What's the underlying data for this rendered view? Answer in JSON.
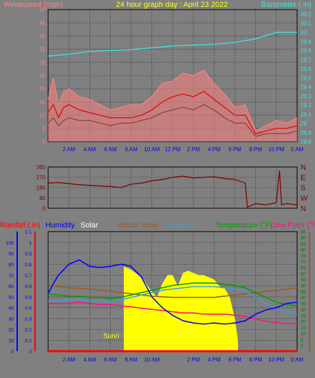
{
  "chart_data": [
    {
      "type": "line",
      "title": "24 hour graph day : April 23 2022",
      "ylabel": "Windspeed (mph)",
      "y2label": "Barometer (.in)",
      "ylim": [
        0,
        50
      ],
      "y2lim": [
        28.8,
        30.25
      ],
      "yticks": [
        "0",
        "5",
        "10",
        "15",
        "20",
        "25",
        "30",
        "35",
        "40",
        "45",
        "50"
      ],
      "y2ticks": [
        "28.8",
        "28.9",
        "29",
        "29.1",
        "29.2",
        "29.3",
        "29.4",
        "29.5",
        "29.6",
        "29.7",
        "29.8",
        "29.9",
        "30",
        "30.1",
        "30.2"
      ],
      "xticks": [
        "2 AM",
        "4 AM",
        "6 AM",
        "8 AM",
        "10 AM",
        "12 PM",
        "2 PM",
        "4 PM",
        "6 PM",
        "8 PM",
        "10 PM",
        "0 AM"
      ],
      "colors": {
        "gust": "#ff8080",
        "wind": "#e00000",
        "wind_dark": "#8b3a3a",
        "barometer": "#40e0e0"
      },
      "series": [
        {
          "key": "gust",
          "x": [
            0,
            0.5,
            1,
            1.5,
            2,
            3,
            4,
            5,
            6,
            7,
            8,
            9,
            10,
            11,
            12,
            13,
            14,
            15,
            16,
            17,
            18,
            19,
            20,
            21,
            22,
            23,
            24
          ],
          "values": [
            16,
            24,
            14,
            19,
            20,
            17,
            16,
            14,
            12,
            13,
            14,
            14,
            17,
            22,
            23,
            26,
            25,
            27,
            22,
            18,
            13,
            14,
            4,
            6,
            8,
            7,
            9
          ]
        },
        {
          "key": "wind",
          "x": [
            0,
            0.5,
            1,
            1.5,
            2,
            3,
            4,
            5,
            6,
            7,
            8,
            9,
            10,
            11,
            12,
            13,
            14,
            15,
            16,
            17,
            18,
            19,
            20,
            21,
            22,
            23,
            24
          ],
          "values": [
            11,
            14,
            9,
            13,
            14,
            12,
            11,
            10,
            9,
            9,
            9,
            10,
            12,
            15,
            17,
            18,
            17,
            19,
            16,
            13,
            10,
            10,
            3,
            4,
            5,
            5,
            6
          ]
        },
        {
          "key": "wind_dark",
          "x": [
            0,
            0.5,
            1,
            1.5,
            2,
            3,
            4,
            5,
            6,
            7,
            8,
            9,
            10,
            11,
            12,
            13,
            14,
            15,
            16,
            17,
            18,
            19,
            20,
            21,
            22,
            23,
            24
          ],
          "values": [
            7,
            9,
            6,
            8,
            9,
            8,
            8,
            7,
            6,
            7,
            7,
            8,
            9,
            11,
            12,
            13,
            12,
            14,
            12,
            9,
            7,
            7,
            2,
            3,
            3,
            3,
            4
          ]
        },
        {
          "key": "barometer",
          "x": [
            0,
            2,
            4,
            6,
            8,
            10,
            12,
            14,
            16,
            18,
            20,
            22,
            24
          ],
          "values": [
            29.74,
            29.76,
            29.79,
            29.8,
            29.81,
            29.83,
            29.85,
            29.86,
            29.87,
            29.89,
            29.93,
            30.0,
            30.0
          ]
        }
      ]
    },
    {
      "type": "line",
      "ylim": [
        0,
        360
      ],
      "yticks": [
        "0",
        "90",
        "180",
        "270",
        "360"
      ],
      "compass": [
        "N",
        "W",
        "S",
        "E",
        "N"
      ],
      "xticks": [
        "2 AM",
        "4 AM",
        "6 AM",
        "8 AM",
        "10 AM",
        "12 PM",
        "2 PM",
        "4 PM",
        "6 PM",
        "8 PM",
        "10 PM",
        "0 AM"
      ],
      "colors": {
        "direction": "#800000"
      },
      "series": [
        {
          "key": "direction",
          "x": [
            0,
            1,
            2,
            3,
            4,
            5,
            6,
            7,
            8,
            9,
            10,
            11,
            12,
            13,
            14,
            15,
            16,
            17,
            18,
            19,
            19.2,
            20,
            21,
            22,
            22.3,
            22.5,
            23,
            24
          ],
          "values": [
            220,
            225,
            215,
            205,
            200,
            195,
            190,
            180,
            210,
            220,
            240,
            250,
            270,
            280,
            265,
            270,
            275,
            260,
            250,
            220,
            10,
            40,
            30,
            50,
            330,
            30,
            40,
            30
          ]
        }
      ]
    },
    {
      "type": "line",
      "labels": [
        "Rainfall (.in)",
        "Humidity",
        "Solar",
        "Indoor temp",
        "Windchill",
        "Temperature (°F)",
        "Dew Point (°F)"
      ],
      "ylim": [
        0,
        1.1
      ],
      "yticks": [
        "0",
        "0.1",
        "0.2",
        "0.3",
        "0.4",
        "0.5",
        "0.6",
        "0.7",
        "0.8",
        "0.9",
        "1",
        "1.1"
      ],
      "y_humidity_ticks": [
        "0",
        "10",
        "20",
        "30",
        "40",
        "50",
        "60",
        "70",
        "80",
        "90",
        "100"
      ],
      "y2lim": [
        -5,
        95
      ],
      "y2ticks": [
        "0",
        "5",
        "10",
        "15",
        "20",
        "25",
        "30",
        "35",
        "40",
        "45",
        "50",
        "55",
        "60",
        "65",
        "70",
        "75",
        "80",
        "85",
        "90",
        "95"
      ],
      "xticks": [
        "2 AM",
        "4 AM",
        "6 AM",
        "8 AM",
        "10 AM",
        "2 PM",
        "4 PM",
        "6 PM",
        "8 PM",
        "10 PM",
        "0 AM"
      ],
      "sunrise_label": "Sunri",
      "colors": {
        "rain": "#ff0000",
        "humidity": "#0000ff",
        "solar": "#ffff00",
        "indoor": "#9c5a2a",
        "windchill": "#3aa0d8",
        "temperature": "#00a000",
        "dewpoint": "#ff1080"
      },
      "series": [
        {
          "key": "humidity",
          "x": [
            0,
            0.5,
            1,
            2,
            3,
            4,
            5,
            6,
            7,
            8,
            9,
            10,
            11,
            12,
            13,
            14,
            15,
            16,
            17,
            18,
            19,
            20,
            21,
            22,
            23,
            24
          ],
          "values": [
            53,
            62,
            70,
            80,
            84,
            78,
            77,
            78,
            80,
            78,
            68,
            50,
            40,
            33,
            28,
            26,
            25,
            26,
            25,
            26,
            28,
            34,
            38,
            40,
            44,
            45
          ]
        },
        {
          "key": "indoor",
          "x": [
            0,
            2,
            4,
            6,
            8,
            10,
            12,
            14,
            16,
            18,
            20,
            22,
            24
          ],
          "values": [
            50,
            48,
            47,
            45,
            43,
            41,
            40,
            40,
            40,
            42,
            44,
            46,
            48
          ]
        },
        {
          "key": "windchill",
          "x": [
            0,
            1,
            2,
            3,
            4,
            5,
            6,
            7,
            8,
            9,
            10,
            11,
            12,
            13,
            14,
            15,
            16,
            17,
            18,
            19,
            20,
            21,
            22,
            23,
            24
          ],
          "values": [
            37,
            37,
            38,
            38,
            37,
            37,
            36,
            38,
            40,
            42,
            44,
            46,
            47,
            48,
            49,
            49,
            49,
            48,
            47,
            45,
            40,
            35,
            30,
            28,
            26
          ]
        },
        {
          "key": "temperature",
          "x": [
            0,
            1,
            2,
            3,
            4,
            5,
            6,
            7,
            8,
            9,
            10,
            11,
            12,
            13,
            14,
            15,
            16,
            17,
            18,
            19,
            20,
            21,
            22,
            23,
            24
          ],
          "values": [
            43,
            42,
            41,
            41,
            40,
            40,
            39,
            40,
            42,
            44,
            46,
            48,
            50,
            51,
            52,
            52,
            52,
            51,
            50,
            48,
            44,
            40,
            36,
            34,
            33
          ]
        },
        {
          "key": "dewpoint",
          "x": [
            0,
            1,
            2,
            3,
            4,
            5,
            6,
            7,
            8,
            9,
            10,
            11,
            12,
            13,
            14,
            15,
            16,
            17,
            18,
            19,
            20,
            21,
            22,
            23,
            24
          ],
          "values": [
            35,
            35,
            35,
            36,
            35,
            34,
            34,
            33,
            32,
            31,
            30,
            29,
            28,
            27,
            27,
            26,
            26,
            26,
            25,
            24,
            22,
            20,
            19,
            18,
            18
          ]
        },
        {
          "key": "solar",
          "x": [
            7.3,
            8,
            8.7,
            9.2,
            9.6,
            10,
            10.5,
            11,
            11.5,
            12,
            12.5,
            13,
            13.5,
            14,
            14.5,
            15,
            15.5,
            16,
            16.5,
            17,
            17.5,
            18,
            18.3
          ],
          "values": [
            0.78,
            0.75,
            0.7,
            0.66,
            0.6,
            0.55,
            0.5,
            0.62,
            0.7,
            0.7,
            0.6,
            0.72,
            0.74,
            0.72,
            0.7,
            0.7,
            0.68,
            0.66,
            0.6,
            0.58,
            0.5,
            0.3,
            0.1
          ]
        },
        {
          "key": "rain",
          "x": [
            0,
            24
          ],
          "values": [
            0,
            0
          ]
        }
      ]
    }
  ]
}
